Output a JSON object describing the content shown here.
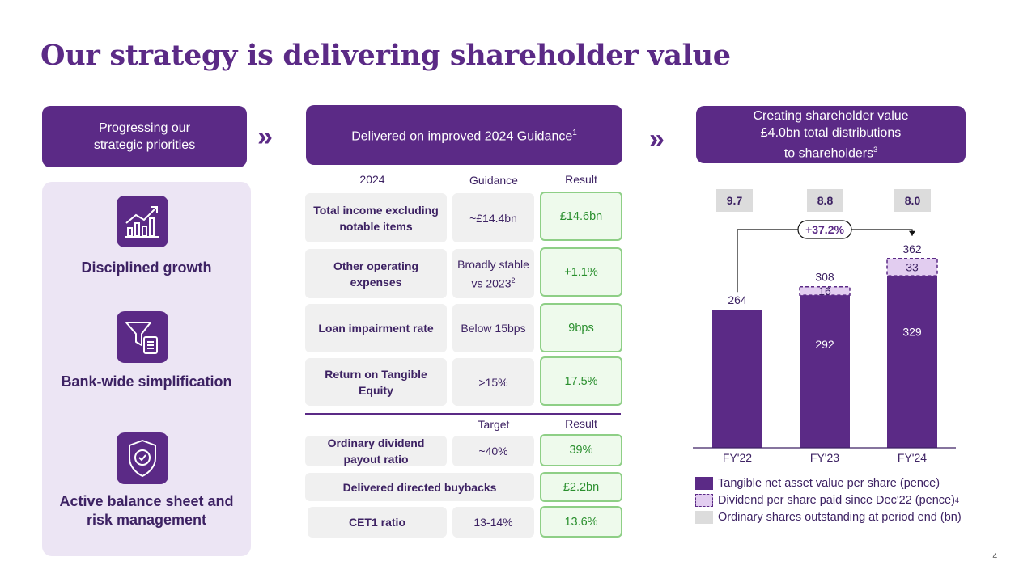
{
  "title": "Our strategy is delivering shareholder value",
  "left": {
    "header": [
      "Progressing our",
      "strategic priorities"
    ],
    "pillars": [
      {
        "icon": "growth-chart-icon",
        "label": "Disciplined growth"
      },
      {
        "icon": "funnel-document-icon",
        "label": "Bank-wide simplification"
      },
      {
        "icon": "shield-check-icon",
        "label": [
          "Active balance sheet and",
          "risk management"
        ]
      }
    ]
  },
  "middle": {
    "header": "Delivered on improved 2024 Guidance",
    "header_sup": "1",
    "columns": {
      "year": "2024",
      "guidance": "Guidance",
      "result": "Result",
      "target": "Target",
      "result2": "Result"
    },
    "rows": [
      {
        "label": [
          "Total income excluding",
          "notable items"
        ],
        "guidance": "~£14.4bn",
        "result": "£14.6bn"
      },
      {
        "label": [
          "Other operating",
          "expenses"
        ],
        "guidance": [
          "Broadly stable",
          "vs 2023"
        ],
        "guidance_sup": "2",
        "result": "+1.1%"
      },
      {
        "label": "Loan impairment rate",
        "guidance": "Below 15bps",
        "result": "9bps"
      },
      {
        "label": [
          "Return on Tangible",
          "Equity"
        ],
        "guidance": ">15%",
        "result": "17.5%"
      }
    ],
    "target_rows": [
      {
        "label": [
          "Ordinary dividend",
          "payout ratio"
        ],
        "target": "~40%",
        "result": "39%"
      },
      {
        "label": "Delivered directed buybacks",
        "result": "£2.2bn"
      },
      {
        "label": "CET1 ratio",
        "target": "13-14%",
        "result": "13.6%"
      }
    ]
  },
  "right": {
    "header": [
      "Creating shareholder value",
      "£4.0bn total distributions",
      "to shareholders"
    ],
    "header_sup": "3",
    "growth_label": "+37.2%"
  },
  "chart_data": {
    "type": "bar",
    "categories": [
      "FY'22",
      "FY'23",
      "FY'24"
    ],
    "series": [
      {
        "name": "Tangible net asset value per share (pence)",
        "values": [
          264,
          292,
          329
        ],
        "color": "#5b2a86"
      },
      {
        "name": "Dividend per share paid since Dec'22 (pence)",
        "values": [
          0,
          16,
          33
        ],
        "color": "#e2cdf0"
      }
    ],
    "totals": [
      264,
      308,
      362
    ],
    "shares_outstanding_bn": [
      "9.7",
      "8.8",
      "8.0"
    ],
    "legend": [
      {
        "label": "Tangible net asset value per share (pence)",
        "sup": ""
      },
      {
        "label": "Dividend per share paid since Dec'22 (pence)",
        "sup": "4"
      },
      {
        "label": "Ordinary shares outstanding at period end (bn)",
        "sup": ""
      }
    ],
    "ylim": [
      0,
      400
    ]
  },
  "colors": {
    "brand": "#5b2a86",
    "result_green": "#2a8f2e",
    "result_border": "#8ecf86",
    "panel": "#ece5f4",
    "dividend": "#e2cdf0",
    "grey": "#dcdcdc"
  },
  "page_number": "4"
}
